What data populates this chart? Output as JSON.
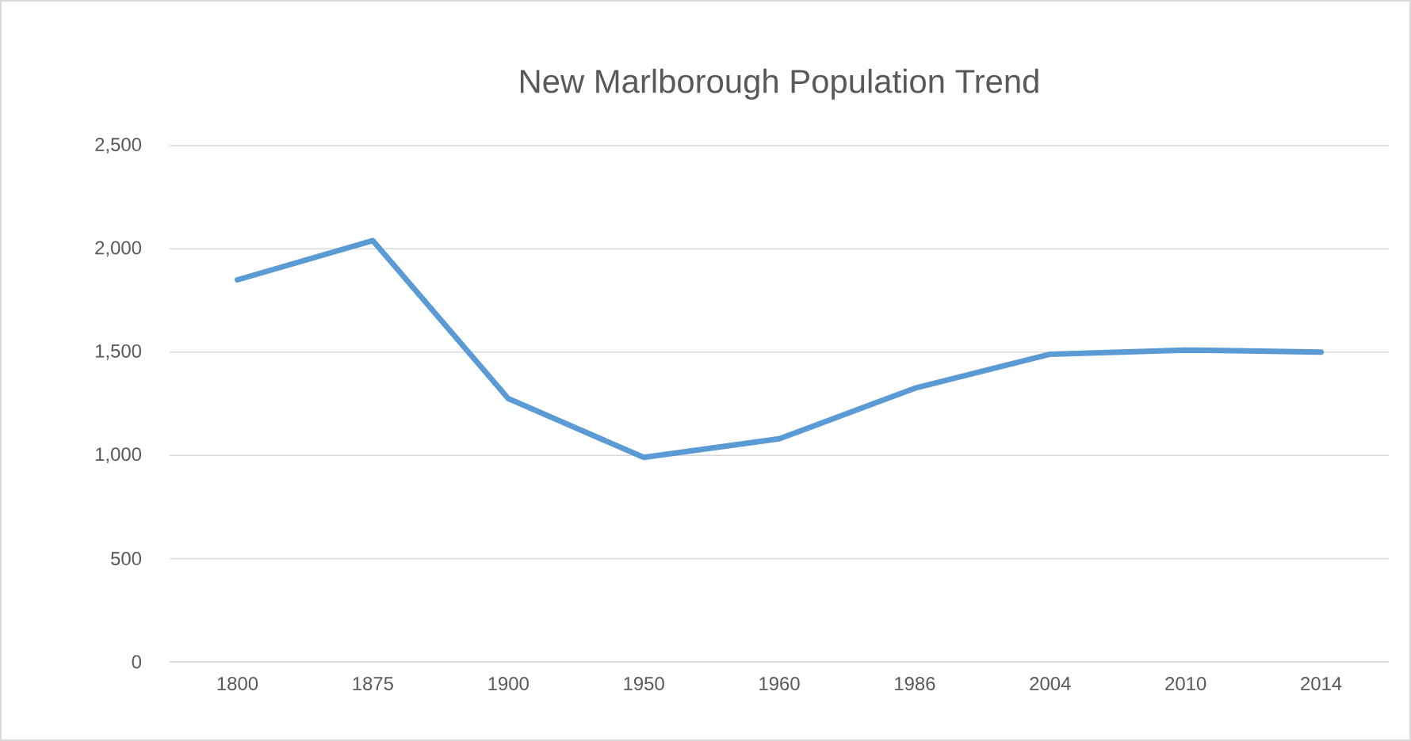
{
  "chart_data": {
    "type": "line",
    "title": "New Marlborough Population Trend",
    "categories": [
      "1800",
      "1875",
      "1900",
      "1950",
      "1960",
      "1986",
      "2004",
      "2010",
      "2014"
    ],
    "series": [
      {
        "color": "#5b9bd5",
        "values": [
          1850,
          2040,
          1275,
          990,
          1080,
          1325,
          1490,
          1510,
          1500
        ]
      }
    ],
    "ylim": [
      0,
      2500
    ],
    "yticks": [
      {
        "value": 0,
        "label": "0"
      },
      {
        "value": 500,
        "label": "500"
      },
      {
        "value": 1000,
        "label": "1,000"
      },
      {
        "value": 1500,
        "label": "1,500"
      },
      {
        "value": 2000,
        "label": "2,000"
      },
      {
        "value": 2500,
        "label": "2,500"
      }
    ],
    "grid": "y",
    "legend": false,
    "marker": "none",
    "line_style": "solid"
  }
}
